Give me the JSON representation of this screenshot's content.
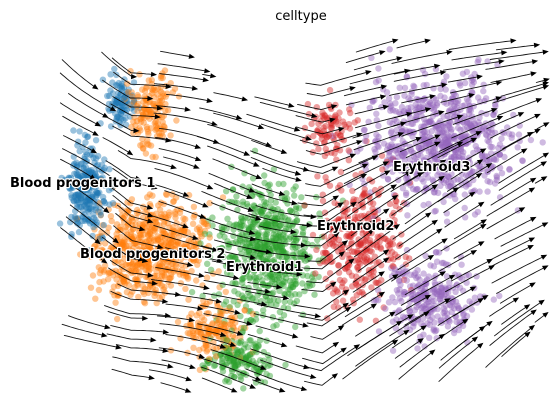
{
  "chart_data": {
    "type": "scatter",
    "title": "celltype",
    "xlabel": "",
    "ylabel": "",
    "legend": "on data",
    "grid": false,
    "axes_visible": false,
    "overlay": "velocity streamlines (black, with arrowheads)",
    "series": [
      {
        "name": "Blood progenitors 1",
        "color": "#1f77b4",
        "label_anchor": [
          10,
          187
        ]
      },
      {
        "name": "Blood progenitors 2",
        "color": "#ff7f0e",
        "label_anchor": [
          80,
          258
        ]
      },
      {
        "name": "Erythroid1",
        "color": "#2ca02c",
        "label_anchor": [
          226,
          271
        ]
      },
      {
        "name": "Erythroid2",
        "color": "#d62728",
        "label_anchor": [
          317,
          230
        ]
      },
      {
        "name": "Erythroid3",
        "color": "#9467bd",
        "label_anchor": [
          393,
          171
        ]
      }
    ]
  }
}
